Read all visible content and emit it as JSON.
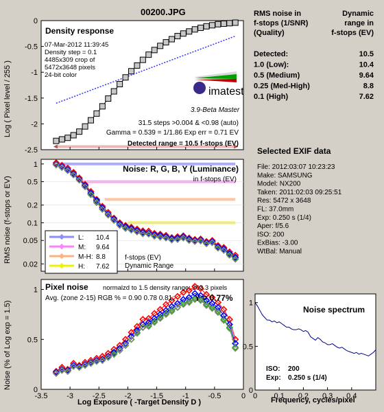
{
  "title": "00200.JPG",
  "colors": {
    "title": "#6b006b",
    "dark_red": "#7a0000",
    "L": "#8d8dff",
    "M": "#ff80ff",
    "MH": "#ffb080",
    "H": "#f0f000",
    "R": "#ff0000",
    "G": "#00b000",
    "B": "#0000ff",
    "Y": "#7a8a6a"
  },
  "chart_data": [
    {
      "type": "scatter",
      "title": "Density response",
      "info_lines": [
        "07-Mar-2012 11:39:45",
        "Density step = 0.1",
        "4485x309 crop of",
        "5472x3648 pixels",
        "24-bit color"
      ],
      "ylabel": "Log ( Pixel level / 255 )",
      "xlim": [
        -3.5,
        0
      ],
      "ylim": [
        -2.5,
        0
      ],
      "y_ticks": [
        "0",
        "-0.5",
        "-1",
        "-1.5",
        "-2",
        "-2.5"
      ],
      "measured": {
        "x": [
          -3.24,
          -3.14,
          -3.04,
          -2.94,
          -2.84,
          -2.74,
          -2.64,
          -2.54,
          -2.44,
          -2.34,
          -2.24,
          -2.14,
          -2.04,
          -1.94,
          -1.84,
          -1.74,
          -1.64,
          -1.54,
          -1.44,
          -1.34,
          -1.24,
          -1.14,
          -1.04,
          -0.94,
          -0.84,
          -0.74,
          -0.64,
          -0.54,
          -0.44,
          -0.34,
          -0.24,
          -0.14
        ],
        "y": [
          -2.33,
          -2.3,
          -2.27,
          -2.22,
          -2.15,
          -2.05,
          -1.93,
          -1.8,
          -1.66,
          -1.51,
          -1.37,
          -1.23,
          -1.1,
          -0.98,
          -0.87,
          -0.76,
          -0.66,
          -0.57,
          -0.49,
          -0.42,
          -0.36,
          -0.3,
          -0.25,
          -0.21,
          -0.17,
          -0.14,
          -0.11,
          -0.09,
          -0.07,
          -0.06,
          -0.05,
          -0.04
        ]
      },
      "gamma_fit": {
        "x": [
          -3.24,
          -0.14
        ],
        "y": [
          -1.6,
          -0.3
        ]
      },
      "detected_range_line": -2.44,
      "logo": "imatest",
      "version": "3.9-Beta  Master",
      "stats_lines": [
        "31.5 steps >0.004 & <0.98 (auto)",
        "Gamma = 0.539 = 1/1.86  Exp err = 0.71 EV"
      ],
      "detected_label": "Detected range = 10.5 f-stops (EV)"
    },
    {
      "type": "line",
      "title": "Noise: R, G, B, Y (Luminance)",
      "subtitle": "in f-stops (EV)",
      "ylabel": "RMS noise (f-stops or EV)",
      "yscale": "log",
      "xlim": [
        -3.5,
        0
      ],
      "ylim": [
        0.015,
        1.2
      ],
      "y_ticks": [
        "1",
        "0.5",
        "0.2",
        "0.1",
        "0.05",
        "0.02"
      ],
      "thresholds": [
        {
          "name": "L",
          "value": 1.0,
          "x_start": -3.2
        },
        {
          "name": "M",
          "value": 0.5,
          "x_start": -2.8
        },
        {
          "name": "M-H",
          "value": 0.25,
          "x_start": -2.4
        },
        {
          "name": "H",
          "value": 0.1,
          "x_start": -2.0
        }
      ],
      "legend": [
        {
          "name": "L:",
          "value": "10.4"
        },
        {
          "name": "M:",
          "value": "9.64"
        },
        {
          "name": "M-H:",
          "value": "8.8"
        },
        {
          "name": "H:",
          "value": "7.62"
        }
      ],
      "legend_note": [
        "f-stops (EV)",
        "Dynamic Range"
      ],
      "x": [
        -3.24,
        -3.14,
        -3.04,
        -2.94,
        -2.84,
        -2.74,
        -2.64,
        -2.54,
        -2.44,
        -2.34,
        -2.24,
        -2.14,
        -2.04,
        -1.94,
        -1.84,
        -1.74,
        -1.64,
        -1.54,
        -1.44,
        -1.34,
        -1.24,
        -1.14,
        -1.04,
        -0.94,
        -0.84,
        -0.74,
        -0.64,
        -0.54,
        -0.44,
        -0.34,
        -0.24,
        -0.14
      ],
      "series": [
        {
          "name": "R",
          "values": [
            1.05,
            0.95,
            0.85,
            0.72,
            0.58,
            0.45,
            0.34,
            0.25,
            0.19,
            0.15,
            0.12,
            0.1,
            0.09,
            0.084,
            0.078,
            0.073,
            0.072,
            0.066,
            0.064,
            0.061,
            0.056,
            0.058,
            0.06,
            0.055,
            0.052,
            0.053,
            0.048,
            0.05,
            0.041,
            0.038,
            0.032,
            0.028
          ]
        },
        {
          "name": "G",
          "values": [
            0.97,
            0.88,
            0.78,
            0.66,
            0.54,
            0.42,
            0.31,
            0.23,
            0.17,
            0.14,
            0.11,
            0.092,
            0.082,
            0.076,
            0.071,
            0.066,
            0.065,
            0.06,
            0.058,
            0.056,
            0.052,
            0.053,
            0.056,
            0.051,
            0.049,
            0.05,
            0.045,
            0.047,
            0.038,
            0.035,
            0.029,
            0.025
          ]
        },
        {
          "name": "B",
          "values": [
            0.99,
            0.9,
            0.8,
            0.68,
            0.55,
            0.43,
            0.32,
            0.24,
            0.18,
            0.14,
            0.115,
            0.096,
            0.086,
            0.08,
            0.074,
            0.069,
            0.067,
            0.063,
            0.061,
            0.058,
            0.054,
            0.055,
            0.058,
            0.053,
            0.05,
            0.051,
            0.046,
            0.048,
            0.039,
            0.036,
            0.03,
            0.026
          ]
        },
        {
          "name": "Y",
          "values": [
            0.96,
            0.87,
            0.77,
            0.65,
            0.53,
            0.41,
            0.3,
            0.22,
            0.17,
            0.135,
            0.11,
            0.09,
            0.08,
            0.075,
            0.07,
            0.065,
            0.064,
            0.059,
            0.057,
            0.055,
            0.051,
            0.052,
            0.055,
            0.05,
            0.048,
            0.049,
            0.044,
            0.046,
            0.037,
            0.034,
            0.028,
            0.024
          ]
        }
      ]
    },
    {
      "type": "line",
      "title": "Pixel noise",
      "subtitle": "normalzd to 1.5 density range: 203.3 pixels",
      "stats": "Avg. (zone 2-15) RGB % = 0.90  0.78  0.81;",
      "y_stat": "Y = 0.77%",
      "ylabel": "Noise (% of Log exp = 1.5)",
      "xlabel": "Log Exposure ( -Target Density D )",
      "xlim": [
        -3.5,
        0
      ],
      "ylim": [
        0,
        1.1
      ],
      "x_ticks": [
        "-3.5",
        "-3",
        "-2.5",
        "-2",
        "-1.5",
        "-1",
        "-0.5",
        "0"
      ],
      "y_ticks": [
        "1",
        "0.5",
        "0"
      ],
      "x": [
        -3.24,
        -3.14,
        -3.04,
        -2.94,
        -2.84,
        -2.74,
        -2.64,
        -2.54,
        -2.44,
        -2.34,
        -2.24,
        -2.14,
        -2.04,
        -1.94,
        -1.84,
        -1.74,
        -1.64,
        -1.54,
        -1.44,
        -1.34,
        -1.24,
        -1.14,
        -1.04,
        -0.94,
        -0.84,
        -0.74,
        -0.64,
        -0.54,
        -0.44,
        -0.34,
        -0.24,
        -0.14
      ],
      "series": [
        {
          "name": "R",
          "values": [
            0.18,
            0.22,
            0.2,
            0.26,
            0.24,
            0.27,
            0.29,
            0.31,
            0.33,
            0.36,
            0.4,
            0.44,
            0.5,
            0.57,
            0.63,
            0.7,
            0.71,
            0.76,
            0.8,
            0.85,
            0.89,
            0.93,
            0.97,
            0.99,
            1.03,
            1.01,
            0.95,
            0.92,
            0.87,
            0.8,
            0.7,
            0.5
          ]
        },
        {
          "name": "G",
          "values": [
            0.16,
            0.19,
            0.18,
            0.23,
            0.22,
            0.24,
            0.26,
            0.28,
            0.29,
            0.32,
            0.36,
            0.39,
            0.44,
            0.5,
            0.57,
            0.62,
            0.64,
            0.68,
            0.72,
            0.76,
            0.79,
            0.82,
            0.86,
            0.88,
            0.91,
            0.9,
            0.85,
            0.82,
            0.78,
            0.7,
            0.62,
            0.42
          ]
        },
        {
          "name": "B",
          "values": [
            0.17,
            0.2,
            0.19,
            0.24,
            0.23,
            0.25,
            0.27,
            0.29,
            0.3,
            0.33,
            0.37,
            0.41,
            0.46,
            0.53,
            0.59,
            0.65,
            0.67,
            0.71,
            0.75,
            0.79,
            0.83,
            0.86,
            0.9,
            0.92,
            0.96,
            0.94,
            0.89,
            0.86,
            0.82,
            0.74,
            0.65,
            0.46
          ]
        },
        {
          "name": "Y",
          "values": [
            0.16,
            0.19,
            0.18,
            0.23,
            0.22,
            0.24,
            0.26,
            0.28,
            0.29,
            0.32,
            0.35,
            0.39,
            0.44,
            0.5,
            0.56,
            0.62,
            0.63,
            0.67,
            0.71,
            0.75,
            0.78,
            0.82,
            0.85,
            0.87,
            0.9,
            0.89,
            0.84,
            0.81,
            0.77,
            0.69,
            0.61,
            0.41
          ]
        }
      ]
    },
    {
      "type": "line",
      "title": "Noise spectrum",
      "xlabel": "Frequency, cycles/pixel",
      "xlim": [
        0,
        0.5
      ],
      "ylim": [
        0,
        1.1
      ],
      "x_ticks": [
        "0",
        "0.1",
        "0.2",
        "0.3",
        "0.4"
      ],
      "y_ticks": [
        "1",
        "0.5",
        "0"
      ],
      "x": [
        0.0,
        0.01,
        0.02,
        0.03,
        0.04,
        0.05,
        0.06,
        0.07,
        0.08,
        0.09,
        0.1,
        0.11,
        0.12,
        0.13,
        0.14,
        0.15,
        0.16,
        0.17,
        0.18,
        0.19,
        0.2,
        0.21,
        0.22,
        0.23,
        0.24,
        0.25,
        0.26,
        0.27,
        0.28,
        0.29,
        0.3,
        0.31,
        0.32,
        0.33,
        0.34,
        0.35,
        0.36,
        0.37,
        0.38,
        0.39,
        0.4,
        0.41,
        0.42,
        0.43,
        0.44,
        0.45,
        0.46,
        0.47,
        0.48,
        0.49,
        0.5
      ],
      "values": [
        1.0,
        0.96,
        0.91,
        0.86,
        0.83,
        0.8,
        0.8,
        0.78,
        0.79,
        0.77,
        0.78,
        0.76,
        0.74,
        0.72,
        0.72,
        0.7,
        0.69,
        0.69,
        0.7,
        0.69,
        0.67,
        0.68,
        0.66,
        0.61,
        0.59,
        0.57,
        0.6,
        0.58,
        0.55,
        0.54,
        0.52,
        0.52,
        0.53,
        0.51,
        0.49,
        0.48,
        0.49,
        0.47,
        0.45,
        0.44,
        0.43,
        0.42,
        0.43,
        0.41,
        0.42,
        0.41,
        0.4,
        0.39,
        0.41,
        0.43,
        0.46
      ],
      "iso_label": "ISO:",
      "iso_value": "200",
      "exp_label": "Exp:",
      "exp_value": "0.250 s   (1/4)"
    }
  ],
  "dynamic_range_table": {
    "header_left": [
      "RMS noise in",
      "f-stops (1/SNR)",
      "(Quality)"
    ],
    "header_right": [
      "Dynamic",
      "range in",
      "f-stops (EV)"
    ],
    "rows": [
      {
        "label": "Detected:",
        "value": "10.5"
      },
      {
        "label": "1.0  (Low):",
        "value": "10.4"
      },
      {
        "label": "0.5  (Medium)",
        "value": "9.64"
      },
      {
        "label": "0.25 (Med-High)",
        "value": "8.8"
      },
      {
        "label": "0.1   (High)",
        "value": "7.62"
      }
    ]
  },
  "exif": {
    "title": "Selected EXIF data",
    "lines": [
      "File:  2012:03:07 10:23:23",
      "Make:  SAMSUNG",
      "Model: NX200",
      "Taken:  2011:02:03 09:25:51",
      "Res:  5472 x 3648",
      "FL:  37.0mm",
      "Exp:  0.250 s  (1/4)",
      "Aper:  f/5.6",
      "ISO:  200",
      "ExBias:  -3.00",
      "WtBal: Manual"
    ]
  }
}
